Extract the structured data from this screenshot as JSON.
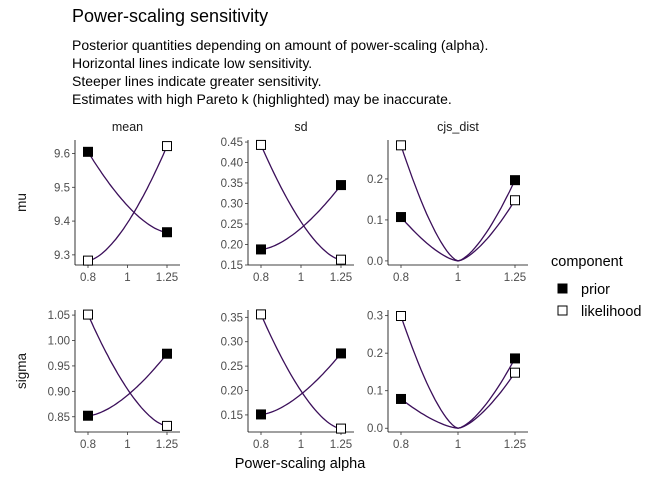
{
  "title": "Power-scaling sensitivity",
  "subtitle": "Posterior quantities depending on amount of power-scaling (alpha).\nHorizontal lines indicate low sensitivity.\nSteeper lines indicate greater sensitivity.\nEstimates with high Pareto k (highlighted) may be inaccurate.",
  "chart_data": {
    "type": "line",
    "xlabel": "Power-scaling alpha",
    "x_ticks": [
      "0.8",
      "1",
      "1.25"
    ],
    "x_tick_values": [
      0.8,
      1,
      1.25
    ],
    "x_scale": "log",
    "columns": [
      "mean",
      "sd",
      "cjs_dist"
    ],
    "rows": [
      "mu",
      "sigma"
    ],
    "legend": {
      "title": "component",
      "placement": "right",
      "entries": [
        {
          "name": "prior",
          "marker": "filled-square"
        },
        {
          "name": "likelihood",
          "marker": "open-square"
        }
      ]
    },
    "line_color": "#3b0f5a",
    "panels": [
      {
        "row": "mu",
        "column": "mean",
        "ylim": [
          9.27,
          9.64
        ],
        "y_ticks": [
          "9.3",
          "9.4",
          "9.5",
          "9.6"
        ],
        "y_tick_values": [
          9.3,
          9.4,
          9.5,
          9.6
        ],
        "series": [
          {
            "name": "prior",
            "points": [
              [
                0.8,
                9.605
              ],
              [
                1.25,
                9.367
              ]
            ]
          },
          {
            "name": "likelihood",
            "points": [
              [
                0.8,
                9.283
              ],
              [
                1.25,
                9.622
              ]
            ]
          }
        ]
      },
      {
        "row": "mu",
        "column": "sd",
        "ylim": [
          0.15,
          0.455
        ],
        "y_ticks": [
          "0.15",
          "0.20",
          "0.25",
          "0.30",
          "0.35",
          "0.40",
          "0.45"
        ],
        "y_tick_values": [
          0.15,
          0.2,
          0.25,
          0.3,
          0.35,
          0.4,
          0.45
        ],
        "series": [
          {
            "name": "prior",
            "points": [
              [
                0.8,
                0.188
              ],
              [
                1.25,
                0.345
              ]
            ]
          },
          {
            "name": "likelihood",
            "points": [
              [
                0.8,
                0.443
              ],
              [
                1.25,
                0.163
              ]
            ]
          }
        ]
      },
      {
        "row": "mu",
        "column": "cjs_dist",
        "ylim": [
          -0.01,
          0.295
        ],
        "y_ticks": [
          "0.0",
          "0.1",
          "0.2"
        ],
        "y_tick_values": [
          0,
          0.1,
          0.2
        ],
        "series": [
          {
            "name": "prior",
            "points": [
              [
                0.8,
                0.107
              ],
              [
                1,
                0.0
              ],
              [
                1.25,
                0.197
              ]
            ]
          },
          {
            "name": "likelihood",
            "points": [
              [
                0.8,
                0.282
              ],
              [
                1,
                0.0
              ],
              [
                1.25,
                0.148
              ]
            ]
          }
        ]
      },
      {
        "row": "sigma",
        "column": "mean",
        "ylim": [
          0.82,
          1.06
        ],
        "y_ticks": [
          "0.85",
          "0.90",
          "0.95",
          "1.00",
          "1.05"
        ],
        "y_tick_values": [
          0.85,
          0.9,
          0.95,
          1.0,
          1.05
        ],
        "series": [
          {
            "name": "prior",
            "points": [
              [
                0.8,
                0.852
              ],
              [
                1.25,
                0.974
              ]
            ]
          },
          {
            "name": "likelihood",
            "points": [
              [
                0.8,
                1.051
              ],
              [
                1.25,
                0.832
              ]
            ]
          }
        ]
      },
      {
        "row": "sigma",
        "column": "sd",
        "ylim": [
          0.115,
          0.365
        ],
        "y_ticks": [
          "0.15",
          "0.20",
          "0.25",
          "0.30",
          "0.35"
        ],
        "y_tick_values": [
          0.15,
          0.2,
          0.25,
          0.3,
          0.35
        ],
        "series": [
          {
            "name": "prior",
            "points": [
              [
                0.8,
                0.151
              ],
              [
                1.25,
                0.276
              ]
            ]
          },
          {
            "name": "likelihood",
            "points": [
              [
                0.8,
                0.356
              ],
              [
                1.25,
                0.122
              ]
            ]
          }
        ]
      },
      {
        "row": "sigma",
        "column": "cjs_dist",
        "ylim": [
          -0.01,
          0.315
        ],
        "y_ticks": [
          "0.0",
          "0.1",
          "0.2",
          "0.3"
        ],
        "y_tick_values": [
          0,
          0.1,
          0.2,
          0.3
        ],
        "series": [
          {
            "name": "prior",
            "points": [
              [
                0.8,
                0.078
              ],
              [
                1,
                0.0
              ],
              [
                1.25,
                0.186
              ]
            ]
          },
          {
            "name": "likelihood",
            "points": [
              [
                0.8,
                0.299
              ],
              [
                1,
                0.0
              ],
              [
                1.25,
                0.148
              ]
            ]
          }
        ]
      }
    ]
  }
}
